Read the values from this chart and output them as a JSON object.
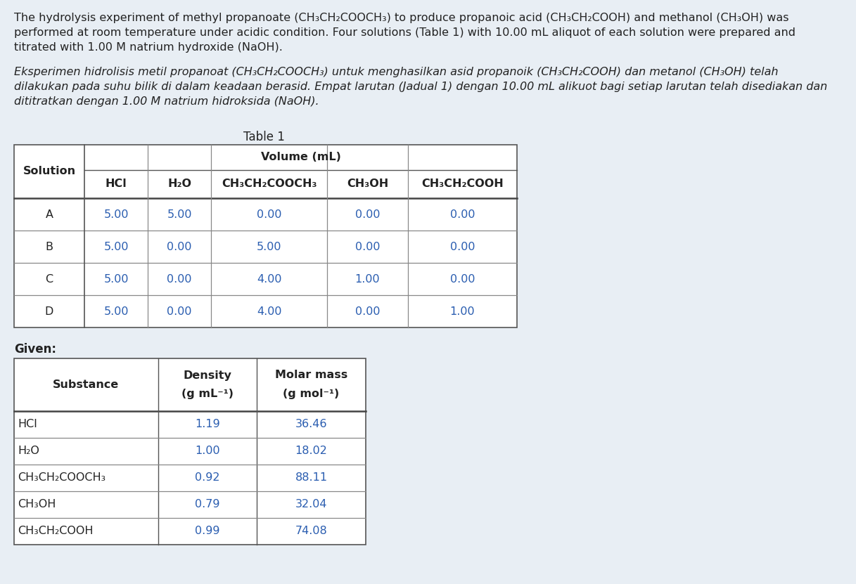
{
  "background_color": "#e8eef4",
  "blue": "#2a5db0",
  "dark": "#222222",
  "paragraph1_lines": [
    "The hydrolysis experiment of methyl propanoate (CH₃CH₂COOCH₃) to produce propanoic acid (CH₃CH₂COOH) and methanol (CH₃OH) was",
    "performed at room temperature under acidic condition. Four solutions (Table 1) with 10.00 mL aliquot of each solution were prepared and",
    "titrated with 1.00 M natrium hydroxide (NaOH)."
  ],
  "paragraph2_lines": [
    "Eksperimen hidrolisis metil propanoat (CH₃CH₂COOCH₃) untuk menghasilkan asid propanoik (CH₃CH₂COOH) dan metanol (CH₃OH) telah",
    "dilakukan pada suhu bilik di dalam keadaan berasid. Empat larutan (Jadual 1) dengan 10.00 mL alikuot bagi setiap larutan telah disediakan dan",
    "dititratkan dengan 1.00 M natrium hidroksida (NaOH)."
  ],
  "table1_title": "Table 1",
  "table1_vol_header": "Volume (mL)",
  "table1_sol_header": "Solution",
  "table1_col_headers": [
    "HCl",
    "H₂O",
    "CH₃CH₂COOCH₃",
    "CH₃OH",
    "CH₃CH₂COOH"
  ],
  "table1_rows": [
    [
      "A",
      "5.00",
      "5.00",
      "0.00",
      "0.00",
      "0.00"
    ],
    [
      "B",
      "5.00",
      "0.00",
      "5.00",
      "0.00",
      "0.00"
    ],
    [
      "C",
      "5.00",
      "0.00",
      "4.00",
      "1.00",
      "0.00"
    ],
    [
      "D",
      "5.00",
      "0.00",
      "4.00",
      "0.00",
      "1.00"
    ]
  ],
  "given_label": "Given:",
  "table2_header1": "Substance",
  "table2_header2a": "Density",
  "table2_header2b": "(g mL⁻¹)",
  "table2_header3a": "Molar mass",
  "table2_header3b": "(g mol⁻¹)",
  "table2_rows": [
    [
      "HCl",
      "1.19",
      "36.46"
    ],
    [
      "H₂O",
      "1.00",
      "18.02"
    ],
    [
      "CH₃CH₂COOCH₃",
      "0.92",
      "88.11"
    ],
    [
      "CH₃OH",
      "0.79",
      "32.04"
    ],
    [
      "CH₃CH₂COOH",
      "0.99",
      "74.08"
    ]
  ]
}
